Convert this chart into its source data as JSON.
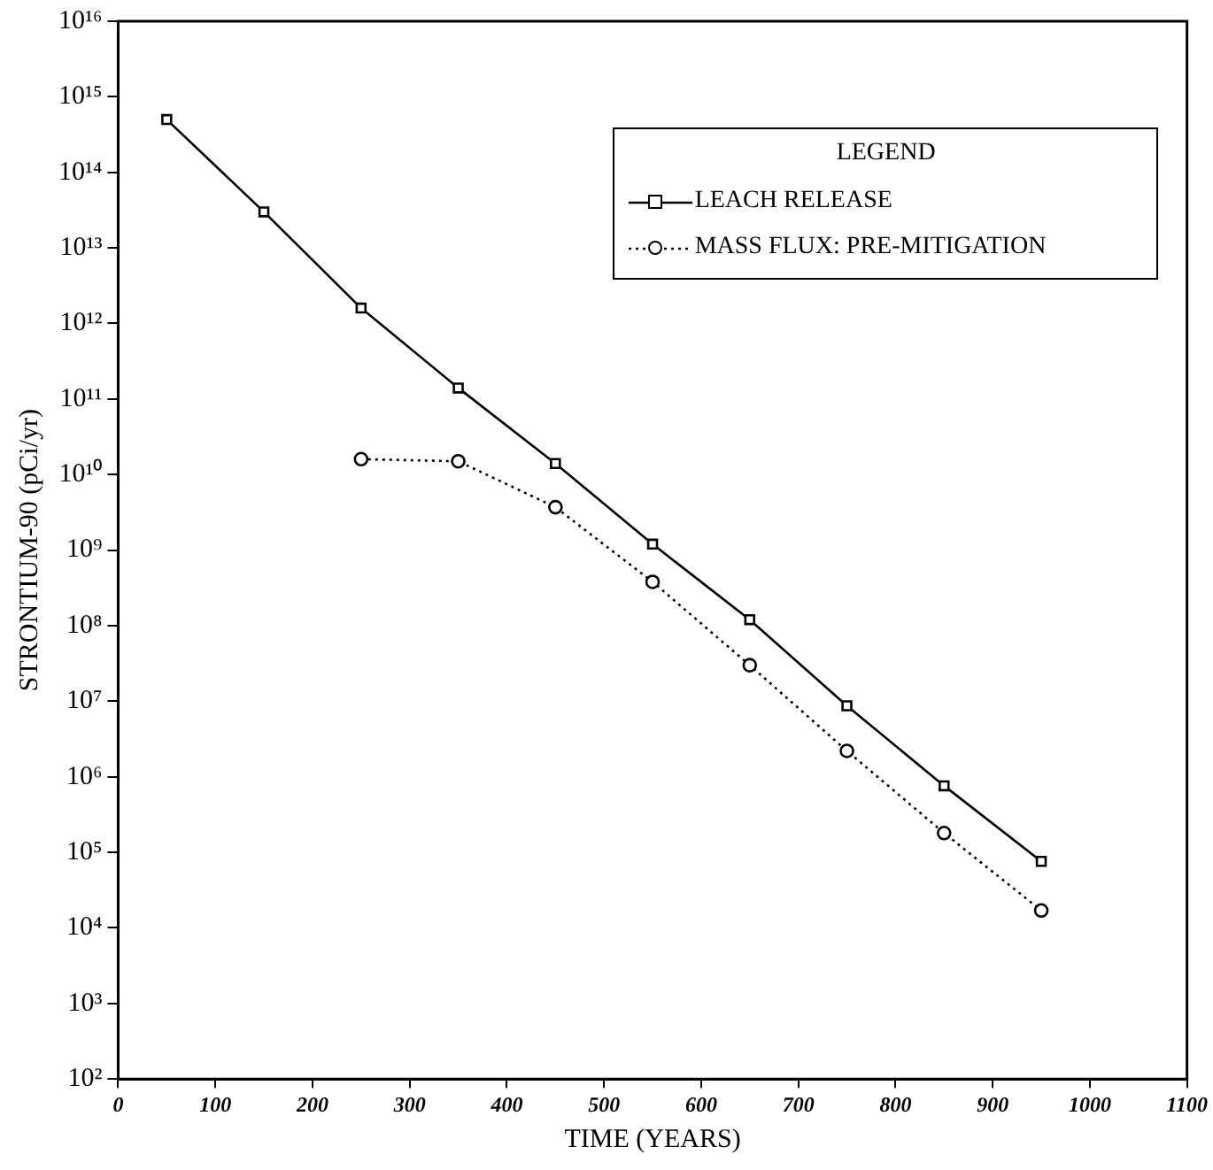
{
  "chart_data": {
    "type": "line",
    "xlabel": "TIME (YEARS)",
    "ylabel": "STRONTIUM-90 (pCi/yr)",
    "legend_title": "LEGEND",
    "legend": "top right",
    "log": "y",
    "grid": false,
    "xlim": [
      0,
      1100
    ],
    "xticks": [
      0,
      100,
      200,
      300,
      400,
      500,
      600,
      700,
      800,
      900,
      1000,
      1100
    ],
    "ylim": [
      100.0,
      1e+16
    ],
    "yticks": [
      {
        "value": 100.0,
        "label": "10²"
      },
      {
        "value": 1000.0,
        "label": "10³"
      },
      {
        "value": 10000.0,
        "label": "10⁴"
      },
      {
        "value": 100000.0,
        "label": "10⁵"
      },
      {
        "value": 1000000.0,
        "label": "10⁶"
      },
      {
        "value": 10000000.0,
        "label": "10⁷"
      },
      {
        "value": 100000000.0,
        "label": "10⁸"
      },
      {
        "value": 1000000000.0,
        "label": "10⁹"
      },
      {
        "value": 10000000000.0,
        "label": "10¹⁰"
      },
      {
        "value": 100000000000.0,
        "label": "10¹¹"
      },
      {
        "value": 1000000000000.0,
        "label": "10¹²"
      },
      {
        "value": 10000000000000.0,
        "label": "10¹³"
      },
      {
        "value": 100000000000000.0,
        "label": "10¹⁴"
      },
      {
        "value": 1000000000000000.0,
        "label": "10¹⁵"
      },
      {
        "value": 1e+16,
        "label": "10¹⁶"
      }
    ],
    "series": [
      {
        "name": "LEACH RELEASE",
        "color": "#000000",
        "marker": "square",
        "line_style": "solid",
        "x": [
          50,
          150,
          250,
          350,
          450,
          550,
          650,
          750,
          850,
          950
        ],
        "values": [
          500000000000000.0,
          30000000000000.0,
          1600000000000.0,
          140000000000.0,
          14000000000.0,
          1200000000.0,
          120000000.0,
          8700000.0,
          760000.0,
          76000.0
        ]
      },
      {
        "name": "MASS FLUX: PRE-MITIGATION",
        "color": "#000000",
        "marker": "circle",
        "line_style": "dotted",
        "x": [
          250,
          350,
          450,
          550,
          650,
          750,
          850,
          950
        ],
        "values": [
          16000000000.0,
          15000000000.0,
          3700000000.0,
          380000000.0,
          30000000.0,
          2200000.0,
          180000.0,
          17000.0
        ]
      }
    ]
  }
}
